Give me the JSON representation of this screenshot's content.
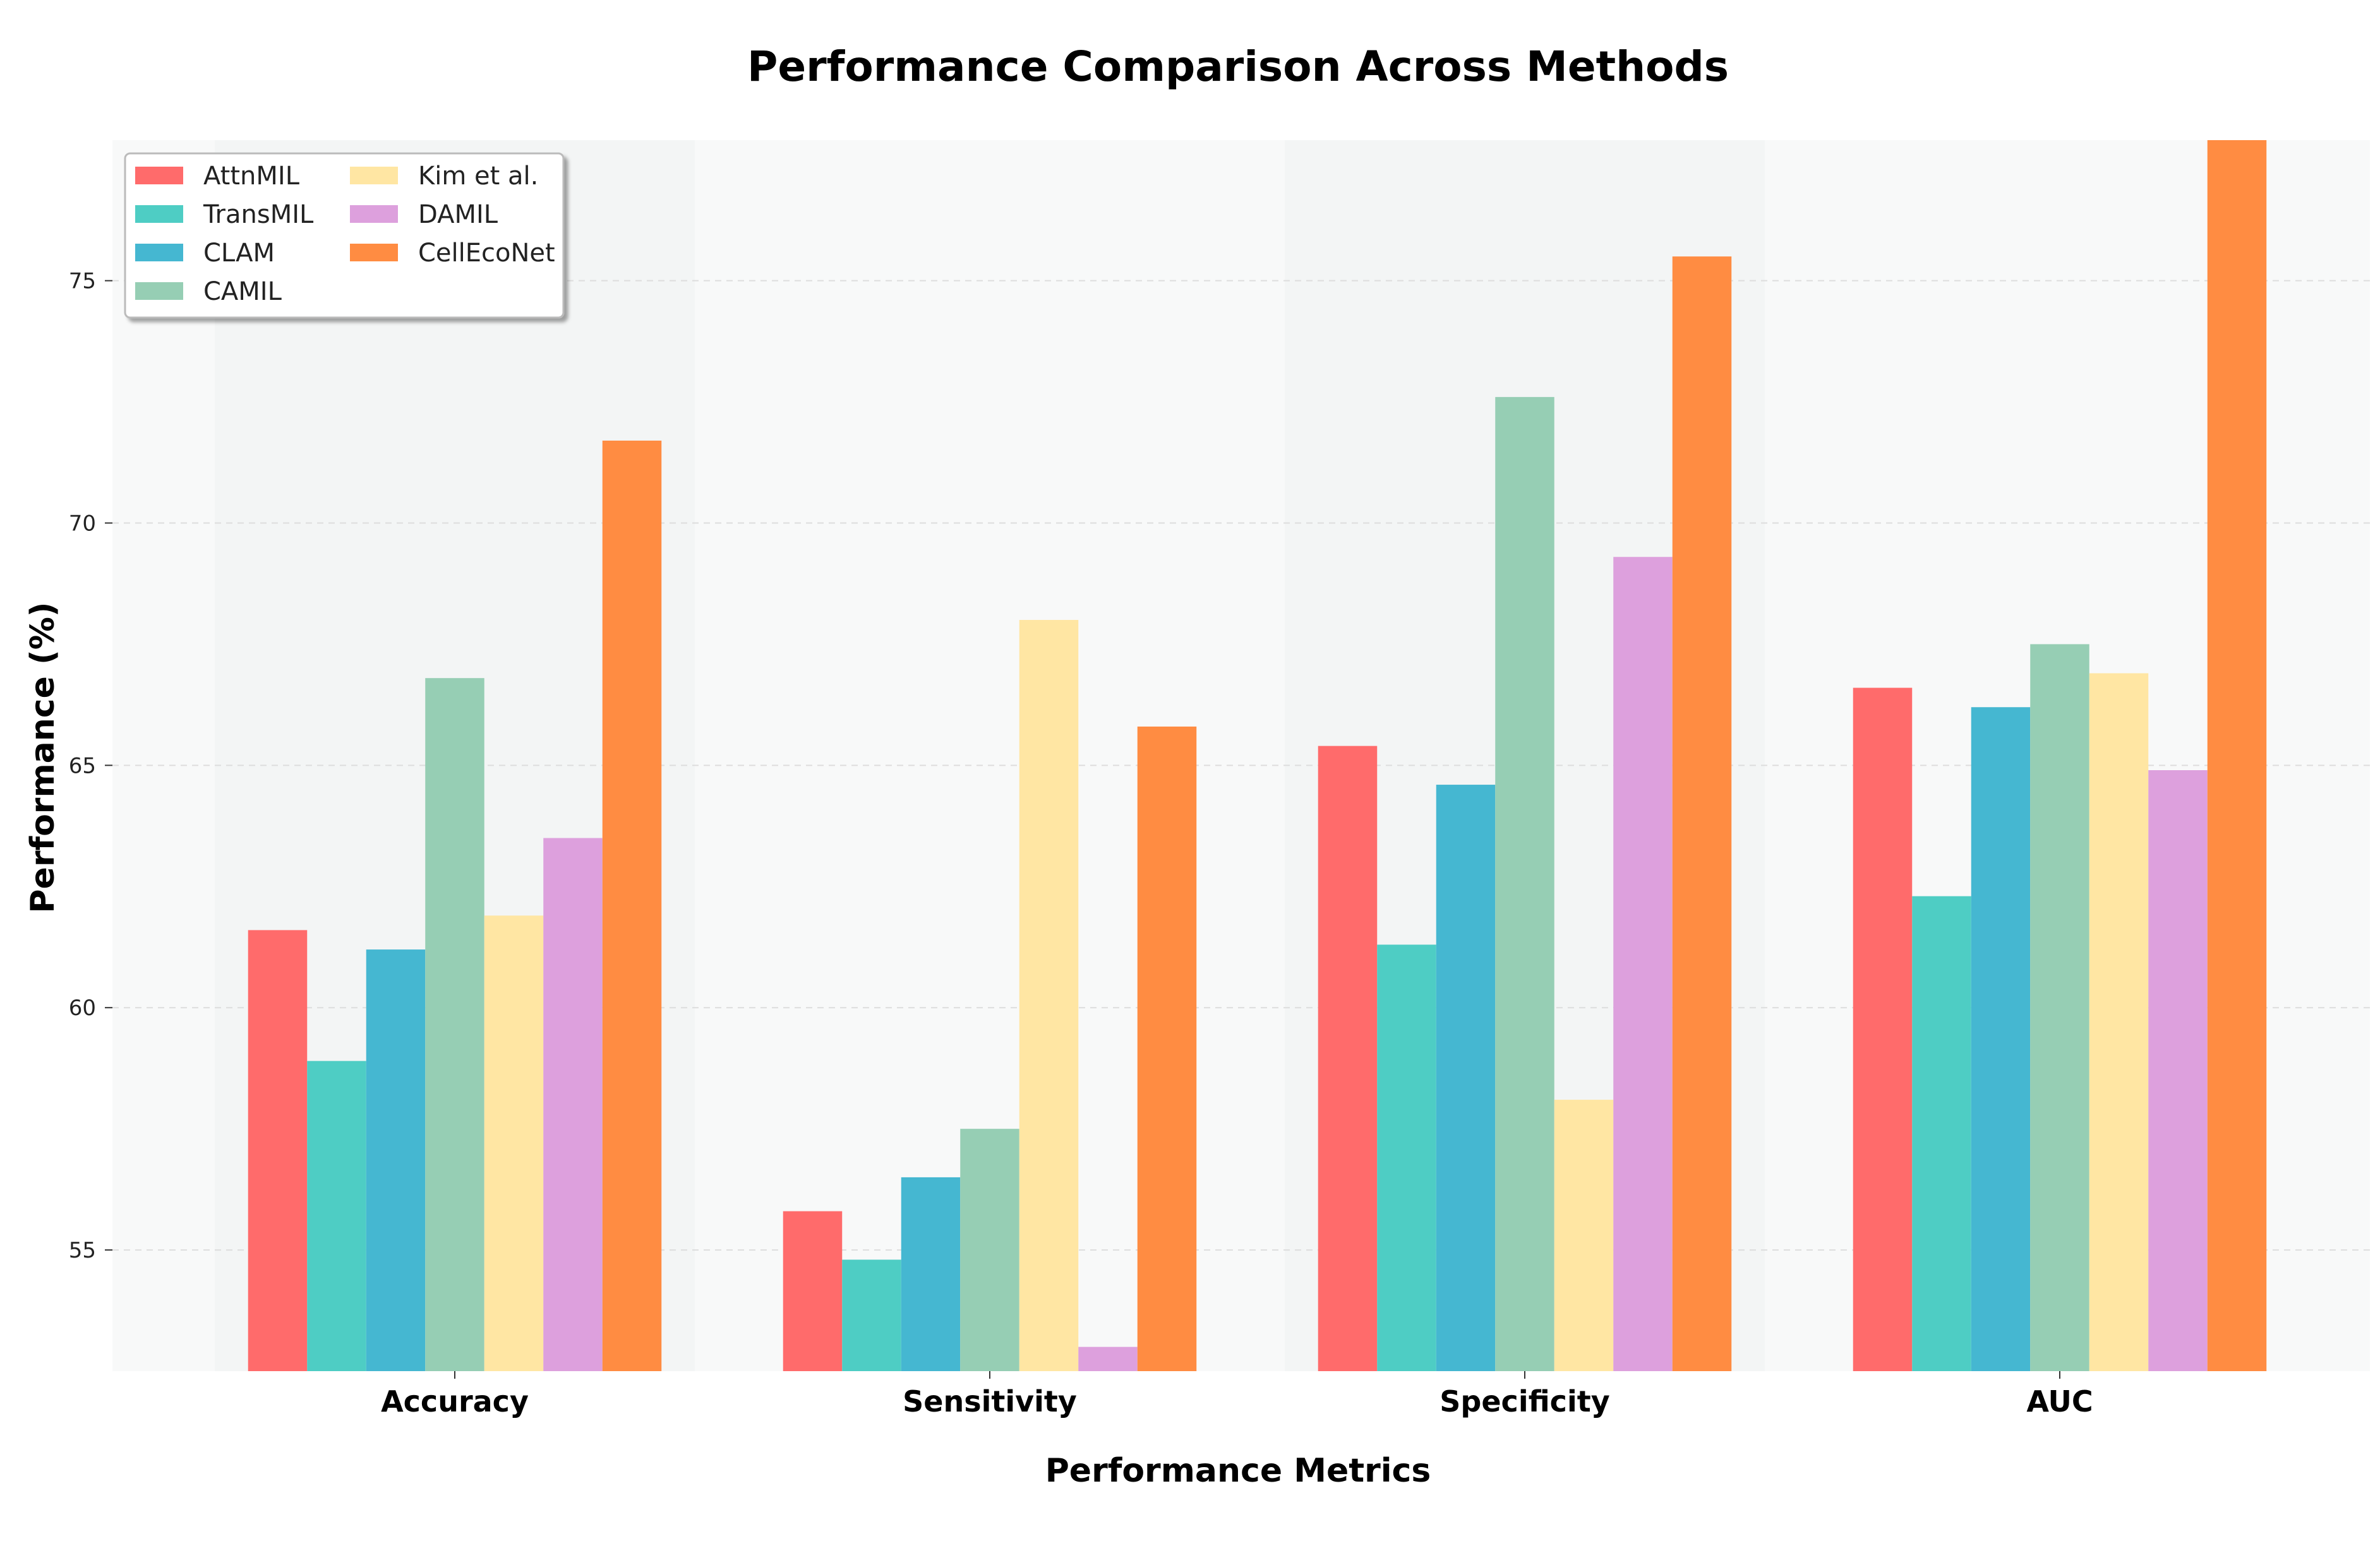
{
  "chart_data": {
    "type": "bar",
    "title": "Performance Comparison Across Methods",
    "xlabel": "Performance Metrics",
    "ylabel": "Performance (%)",
    "categories": [
      "Accuracy",
      "Sensitivity",
      "Specificity",
      "AUC"
    ],
    "ylim": [
      52.5,
      77.9
    ],
    "yticks": [
      55,
      60,
      65,
      70,
      75
    ],
    "grid": true,
    "legend_position": "top-left",
    "legend_columns": 2,
    "series": [
      {
        "name": "AttnMIL",
        "color": "#FF6B6B",
        "values": [
          61.6,
          55.8,
          65.4,
          66.6
        ]
      },
      {
        "name": "TransMIL",
        "color": "#4ECDC4",
        "values": [
          58.9,
          54.8,
          61.3,
          62.3
        ]
      },
      {
        "name": "CLAM",
        "color": "#45B7D1",
        "values": [
          61.2,
          56.5,
          64.6,
          66.2
        ]
      },
      {
        "name": "CAMIL",
        "color": "#96CEB4",
        "values": [
          66.8,
          57.5,
          72.6,
          67.5
        ]
      },
      {
        "name": "Kim et al.",
        "color": "#FFE6A3",
        "values": [
          61.9,
          68.0,
          58.1,
          66.9
        ]
      },
      {
        "name": "DAMIL",
        "color": "#DDA0DD",
        "values": [
          63.5,
          53.0,
          69.3,
          64.9
        ]
      },
      {
        "name": "CellEcoNet",
        "color": "#FF8C42",
        "values": [
          71.7,
          65.8,
          75.5,
          77.9
        ]
      }
    ]
  }
}
